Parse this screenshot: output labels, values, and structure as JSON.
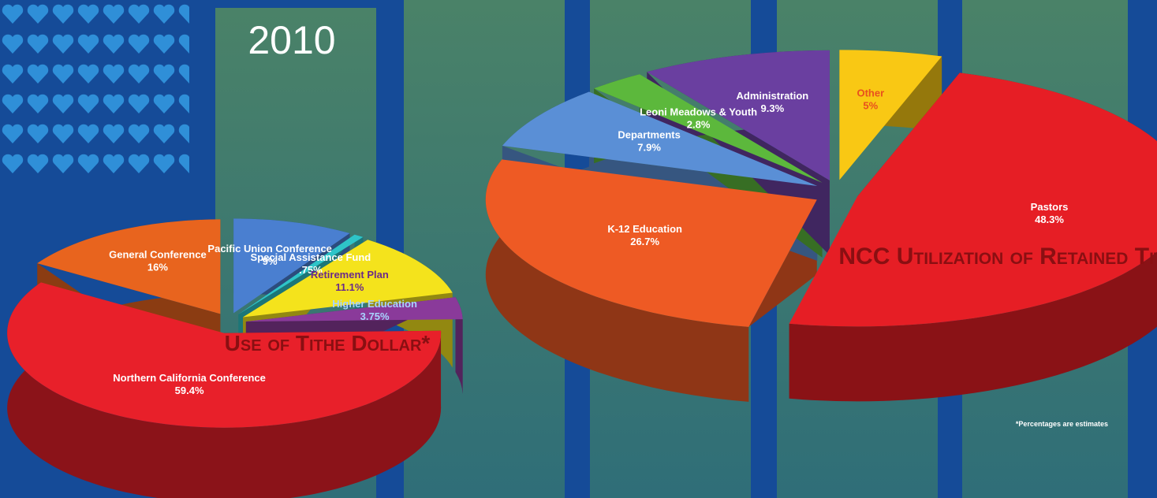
{
  "year": "2010",
  "footnote": "*Percentages are estimates",
  "chart_data": [
    {
      "type": "pie",
      "title": "Use of Tithe Dollar*",
      "categories": [
        "Pacific Union Conference",
        "Special Assistance Fund",
        "Retirement Plan",
        "Higher Education",
        "Northern California Conference",
        "General Conference"
      ],
      "values": [
        9,
        0.75,
        11.1,
        3.75,
        59.4,
        16
      ],
      "value_labels": [
        "9%",
        ".75%",
        "11.1%",
        "3.75%",
        "59.4%",
        "16%"
      ],
      "colors": [
        "#4a7fd0",
        "#2ec4c8",
        "#f4e31c",
        "#8a3a9a",
        "#e8202a",
        "#e8641e"
      ],
      "label_colors": [
        "#ffffff",
        "#ffffff",
        "#6a2a8a",
        "#a8d4ff",
        "#ffffff",
        "#ffffff"
      ]
    },
    {
      "type": "pie",
      "title": "NCC Utilization of Retained Tithe*",
      "categories": [
        "Other",
        "Pastors",
        "K-12 Education",
        "Departments",
        "Leoni Meadows & Youth",
        "Administration"
      ],
      "values": [
        5,
        48.3,
        26.7,
        7.9,
        2.8,
        9.3
      ],
      "value_labels": [
        "5%",
        "48.3%",
        "26.7%",
        "7.9%",
        "2.8%",
        "9.3%"
      ],
      "colors": [
        "#f9c814",
        "#e61e25",
        "#ee5a24",
        "#5a8fd6",
        "#5cb83c",
        "#6a3fa0"
      ],
      "label_colors": [
        "#e8501e",
        "#ffffff",
        "#ffffff",
        "#ffffff",
        "#ffffff",
        "#ffffff"
      ]
    }
  ]
}
